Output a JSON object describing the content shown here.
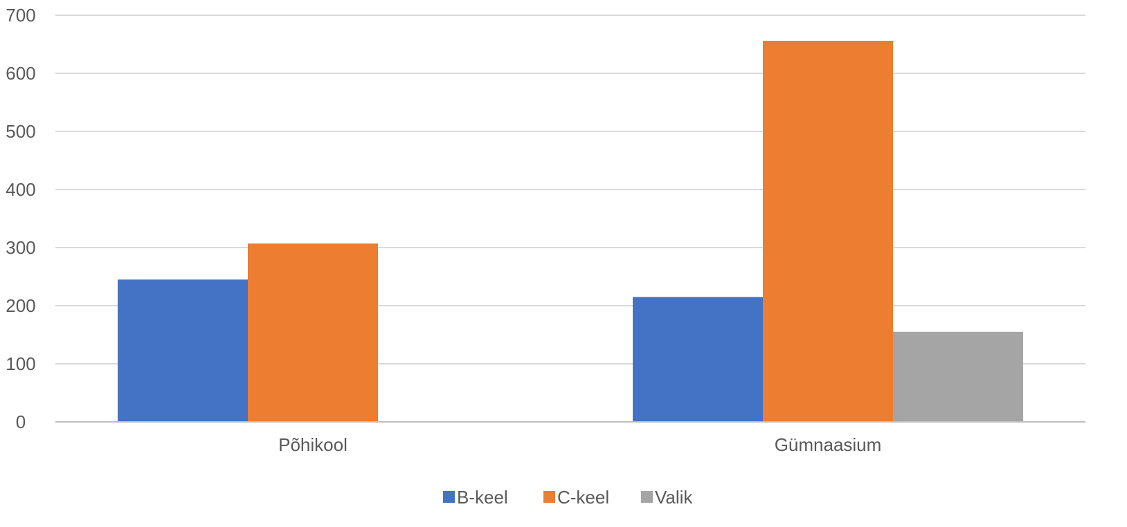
{
  "chart_data": {
    "type": "bar",
    "categories": [
      "Põhikool",
      "Gümnaasium"
    ],
    "series": [
      {
        "name": "B-keel",
        "values": [
          245,
          215
        ],
        "color": "#4472C4"
      },
      {
        "name": "C-keel",
        "values": [
          307,
          656
        ],
        "color": "#ED7D31"
      },
      {
        "name": "Valik",
        "values": [
          0,
          155
        ],
        "color": "#A5A5A5"
      }
    ],
    "title": "",
    "xlabel": "",
    "ylabel": "",
    "ylim": [
      0,
      700
    ],
    "yticks": [
      "0",
      "100",
      "200",
      "300",
      "400",
      "500",
      "600",
      "700"
    ],
    "grid": true,
    "legend_position": "bottom"
  }
}
